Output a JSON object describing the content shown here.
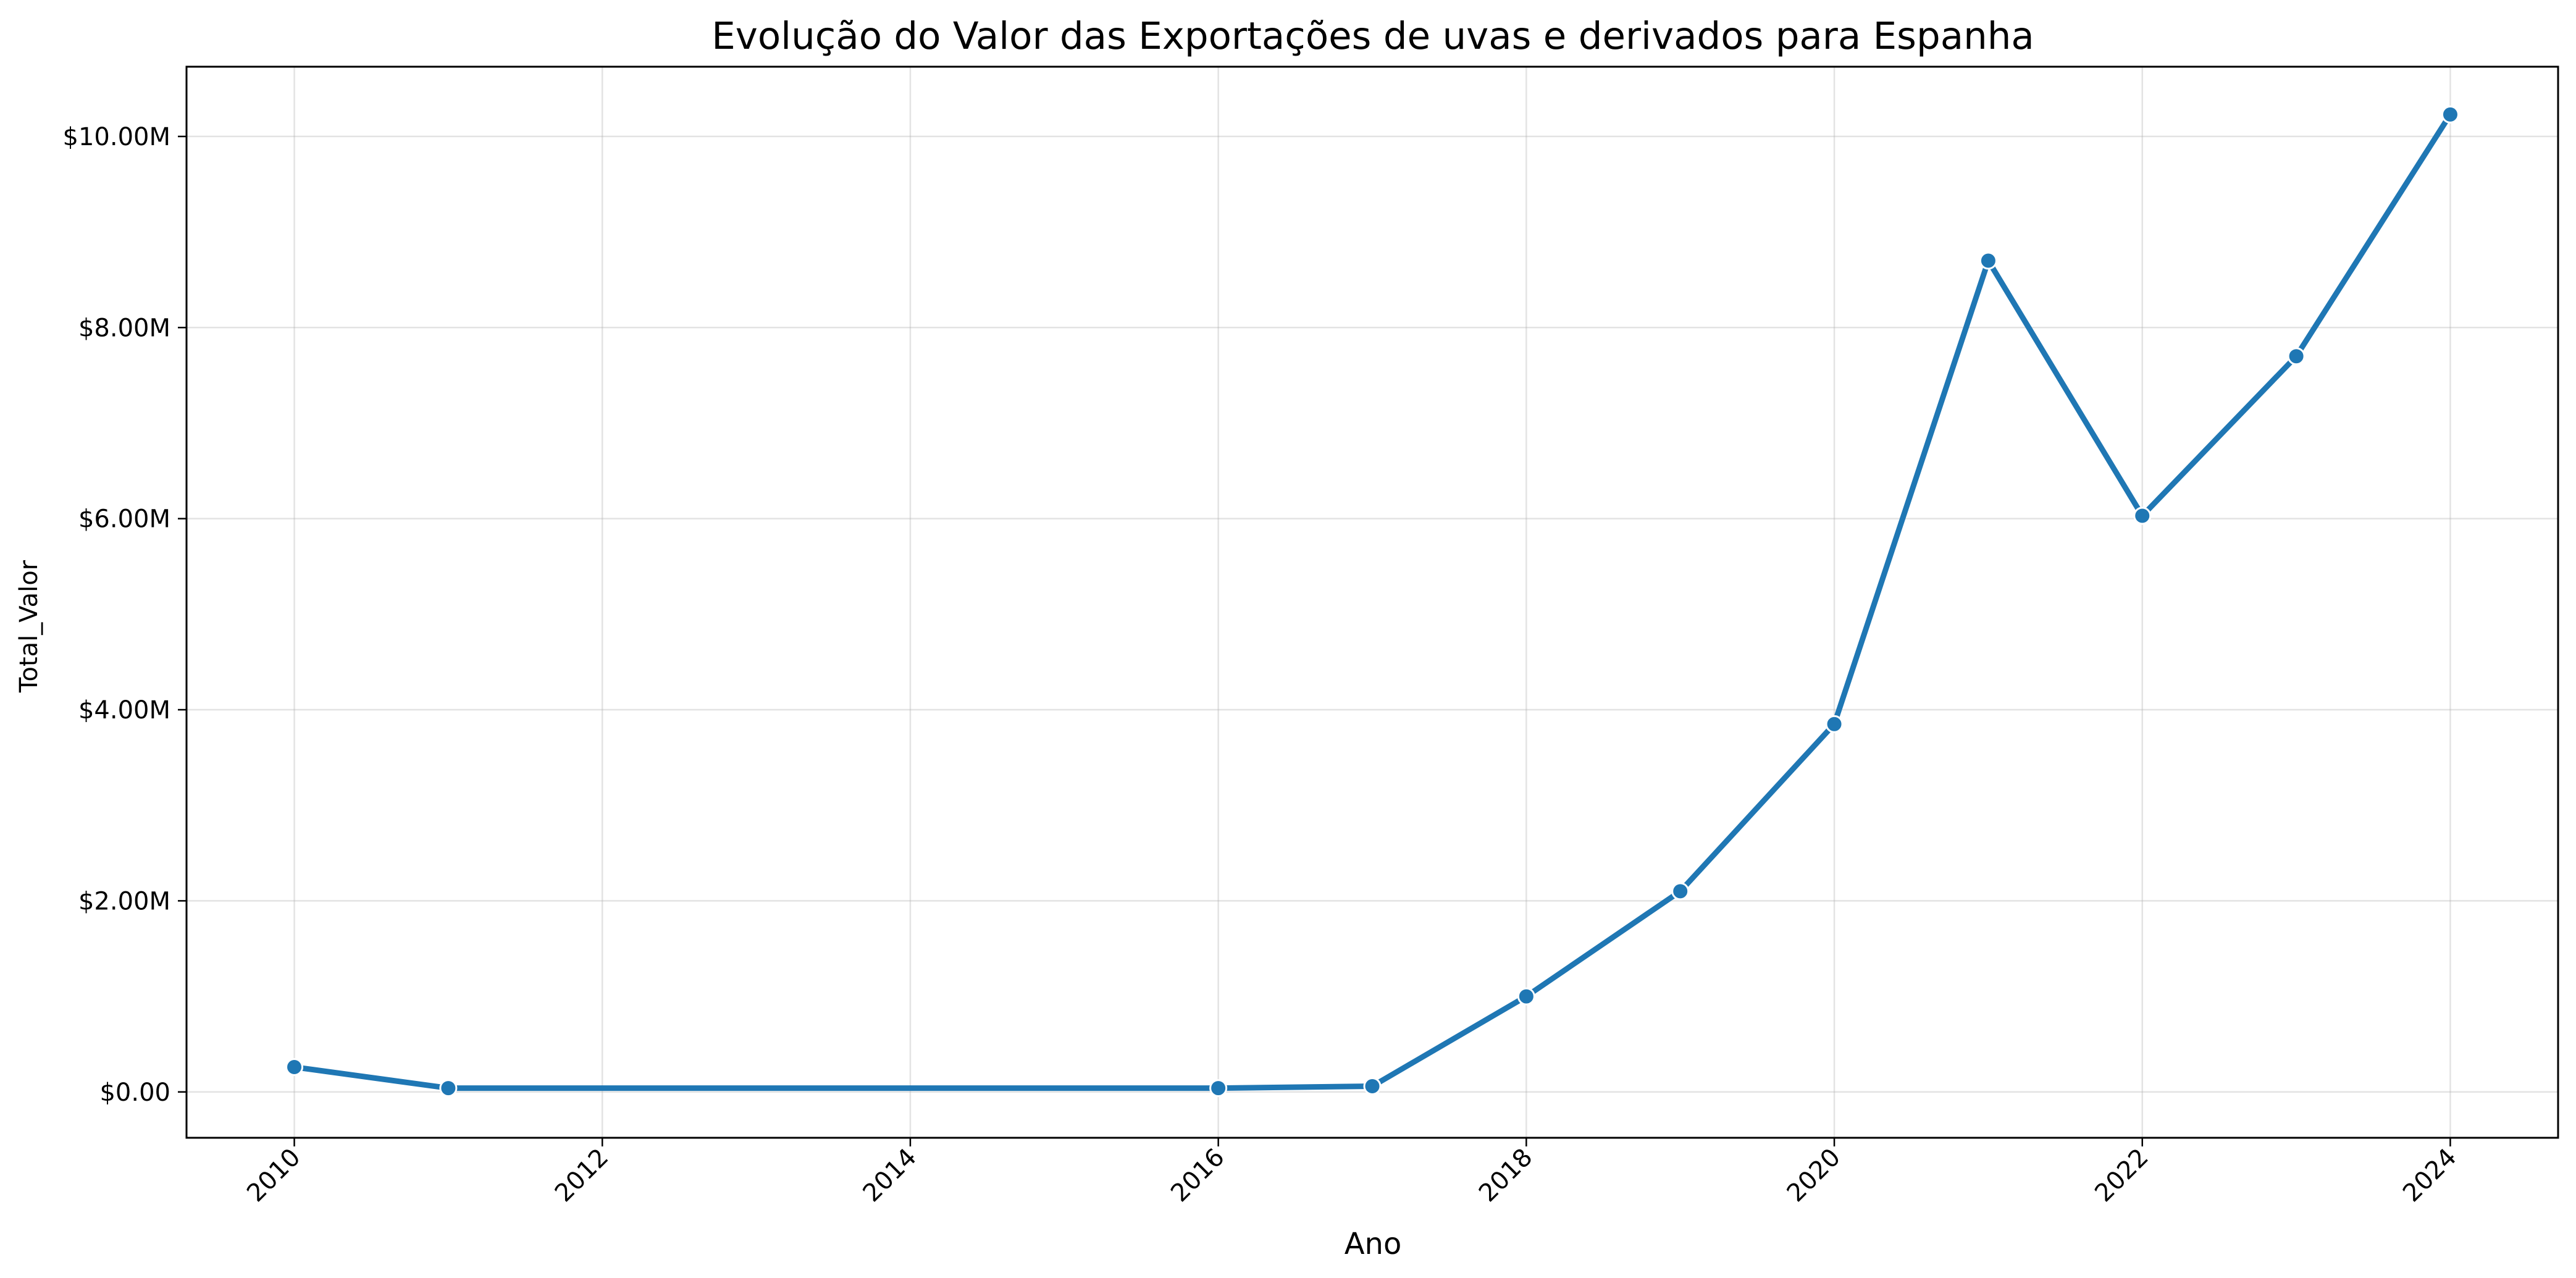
{
  "chart_data": {
    "type": "line",
    "title": "Evolução do Valor das Exportações de uvas e derivados para Espanha",
    "xlabel": "Ano",
    "ylabel": "Total_Valor",
    "xlim": [
      2009.3,
      2024.7
    ],
    "ylim": [
      -480000,
      10730000
    ],
    "x_ticks": [
      2010,
      2012,
      2014,
      2016,
      2018,
      2020,
      2022,
      2024
    ],
    "y_ticks": [
      0,
      2000000,
      4000000,
      6000000,
      8000000,
      10000000
    ],
    "y_tick_labels": [
      "$0.00",
      "$2.00M",
      "$4.00M",
      "$6.00M",
      "$8.00M",
      "$10.00M"
    ],
    "grid": true,
    "series": [
      {
        "color": "#1f77b4",
        "x": [
          2010,
          2011,
          2016,
          2017,
          2018,
          2019,
          2020,
          2021,
          2022,
          2023,
          2024
        ],
        "values": [
          260000,
          40000,
          40000,
          60000,
          1000000,
          2100000,
          3850000,
          8700000,
          6030000,
          7700000,
          10230000
        ]
      }
    ]
  }
}
